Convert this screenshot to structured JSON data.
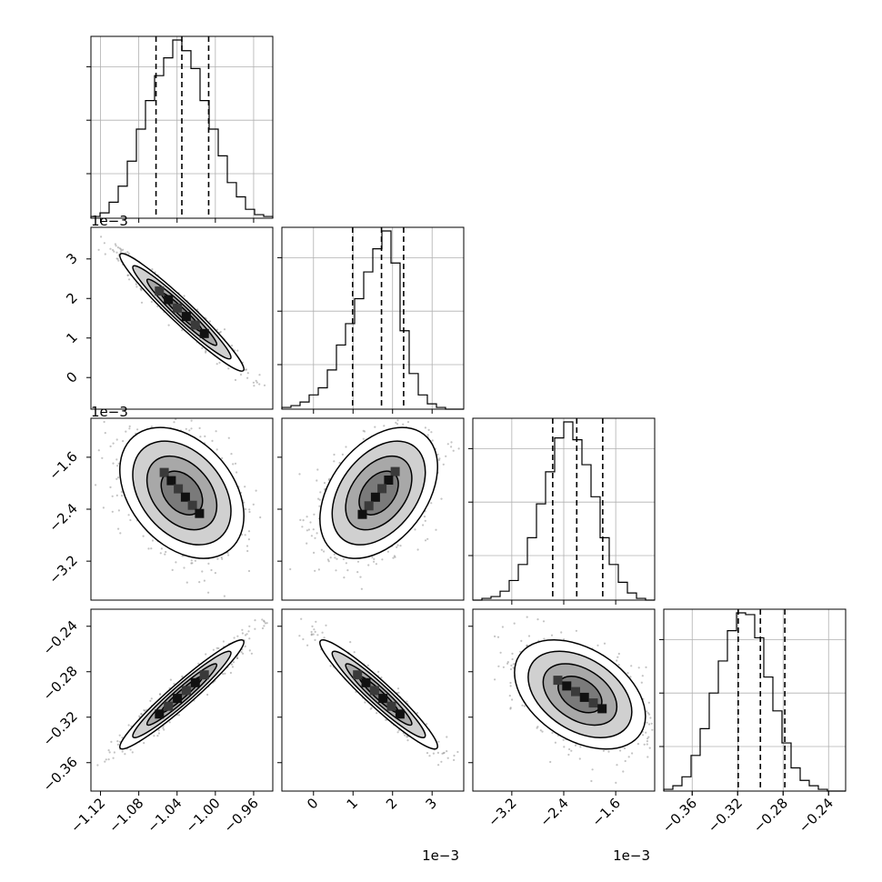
{
  "chart_data": {
    "type": "corner",
    "description_free": true,
    "parameters": [
      {
        "range": [
          -1.13,
          -0.94
        ],
        "median": -1.035,
        "q16": -1.062,
        "q84": -1.007,
        "ticks": [
          -1.12,
          -1.08,
          -1.04,
          -1.0,
          -0.96
        ],
        "tick_labels": [
          "−1.12",
          "−1.08",
          "−1.04",
          "−1.00",
          "−0.96"
        ],
        "offset_text": ""
      },
      {
        "range": [
          -0.0008,
          0.0038
        ],
        "median": 0.00172,
        "q16": 0.00099,
        "q84": 0.00228,
        "ticks": [
          0,
          0.001,
          0.002,
          0.003
        ],
        "tick_labels": [
          "0",
          "1",
          "2",
          "3"
        ],
        "offset_text": "1e−3"
      },
      {
        "range": [
          -0.0038,
          -0.001
        ],
        "median": -0.0022,
        "q16": -0.00257,
        "q84": -0.0018,
        "ticks": [
          -0.0032,
          -0.0024,
          -0.0016
        ],
        "tick_labels": [
          "−3.2",
          "−2.4",
          "−1.6"
        ],
        "offset_text": "1e−3"
      },
      {
        "range": [
          -0.385,
          -0.225
        ],
        "median": -0.3,
        "q16": -0.3195,
        "q84": -0.2785,
        "ticks": [
          -0.36,
          -0.32,
          -0.28,
          -0.24
        ],
        "tick_labels": [
          "−0.36",
          "−0.32",
          "−0.28",
          "−0.24"
        ],
        "offset_text": ""
      }
    ],
    "histograms": [
      {
        "param": 0,
        "bins": 20,
        "counts": [
          1,
          3,
          9,
          18,
          32,
          50,
          66,
          80,
          90,
          100,
          94,
          84,
          66,
          50,
          35,
          20,
          12,
          5,
          2,
          1
        ]
      },
      {
        "param": 1,
        "bins": 20,
        "counts": [
          1,
          2,
          4,
          8,
          12,
          22,
          36,
          48,
          62,
          77,
          90,
          100,
          82,
          44,
          20,
          8,
          3,
          1,
          0,
          0
        ]
      },
      {
        "param": 2,
        "bins": 20,
        "counts": [
          0,
          1,
          2,
          5,
          11,
          20,
          35,
          54,
          72,
          91,
          100,
          90,
          76,
          58,
          35,
          20,
          10,
          4,
          1,
          0
        ]
      },
      {
        "param": 3,
        "bins": 20,
        "counts": [
          1,
          3,
          8,
          20,
          35,
          55,
          73,
          90,
          100,
          99,
          86,
          64,
          45,
          27,
          13,
          6,
          3,
          1,
          0,
          0
        ]
      }
    ],
    "pairs": [
      {
        "x": 1,
        "y": 0,
        "mean": [
          -1.035,
          0.00165
        ],
        "sd": [
          0.027,
          0.00062
        ],
        "rho": -0.965
      },
      {
        "x": 2,
        "y": 0,
        "mean": [
          -1.035,
          -0.00215
        ],
        "sd": [
          0.027,
          0.00042
        ],
        "rho": -0.35
      },
      {
        "x": 2,
        "y": 1,
        "mean": [
          0.00165,
          -0.00215
        ],
        "sd": [
          0.00062,
          0.00042
        ],
        "rho": 0.4
      },
      {
        "x": 3,
        "y": 0,
        "mean": [
          -1.035,
          -0.3
        ],
        "sd": [
          0.027,
          0.02
        ],
        "rho": 0.96
      },
      {
        "x": 3,
        "y": 1,
        "mean": [
          0.00165,
          -0.3
        ],
        "sd": [
          0.00062,
          0.02
        ],
        "rho": -0.95
      },
      {
        "x": 3,
        "y": 2,
        "mean": [
          -0.00215,
          -0.3
        ],
        "sd": [
          0.00042,
          0.02
        ],
        "rho": -0.4
      }
    ],
    "contour_levels": [
      0.12,
      0.39,
      0.68,
      0.86
    ],
    "grid": true,
    "legend": "none"
  }
}
